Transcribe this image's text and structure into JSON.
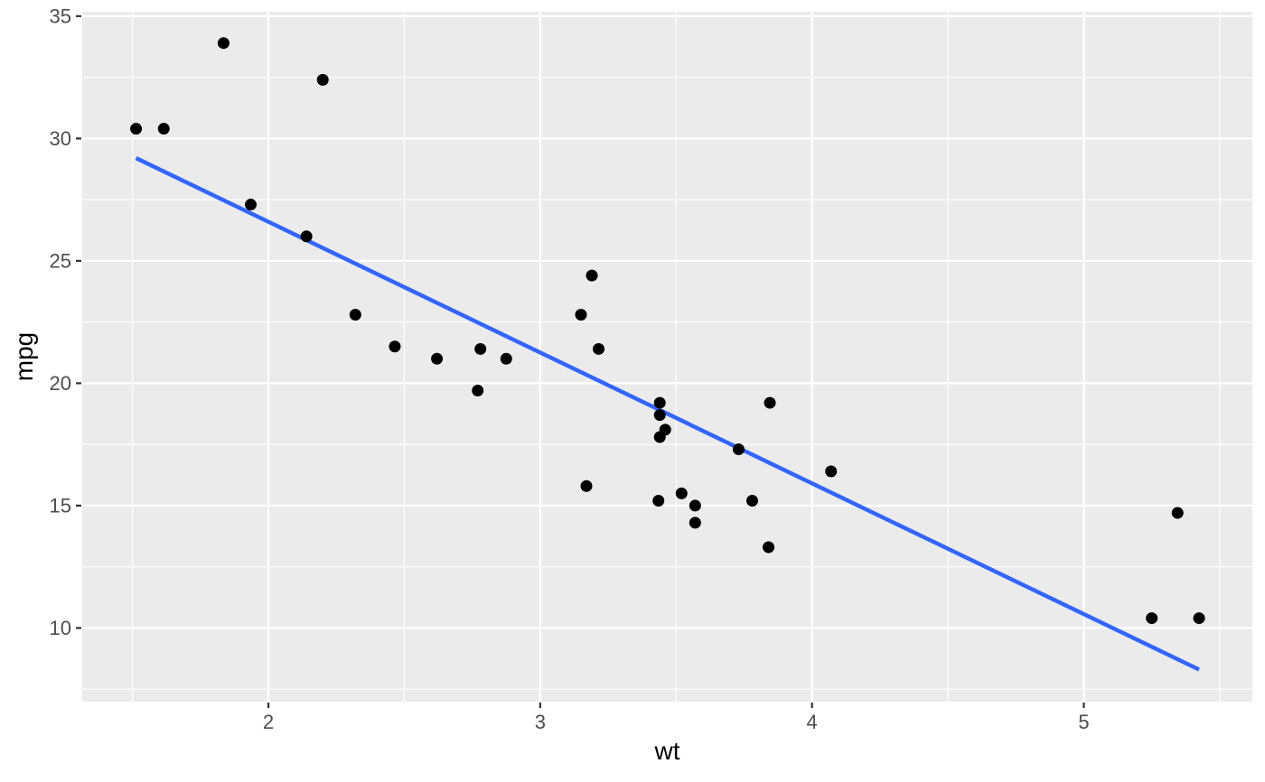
{
  "figure": {
    "background_color": "#FFFFFF",
    "panel_background_color": "#EBEBEB",
    "grid_major_color": "#FFFFFF",
    "grid_minor_color": "#FFFFFF",
    "axis_text_color": "#4D4D4D",
    "axis_tick_color": "#333333",
    "axis_title_color": "#000000"
  },
  "chart_data": {
    "type": "scatter",
    "title": "",
    "xlabel": "wt",
    "ylabel": "mpg",
    "xlim": [
      1.315,
      5.62
    ],
    "ylim": [
      6.99,
      35.18
    ],
    "x_major_ticks": [
      2,
      3,
      4,
      5
    ],
    "x_minor_ticks": [
      1.5,
      2.5,
      3.5,
      4.5,
      5.5
    ],
    "y_major_ticks": [
      10,
      15,
      20,
      25,
      30,
      35
    ],
    "y_minor_ticks": [
      7.5,
      12.5,
      17.5,
      22.5,
      27.5,
      32.5
    ],
    "grid": true,
    "legend_position": "none",
    "point_color": "#000000",
    "point_radius": 6.5,
    "points": [
      {
        "wt": 2.62,
        "mpg": 21.0
      },
      {
        "wt": 2.875,
        "mpg": 21.0
      },
      {
        "wt": 2.32,
        "mpg": 22.8
      },
      {
        "wt": 3.215,
        "mpg": 21.4
      },
      {
        "wt": 3.44,
        "mpg": 18.7
      },
      {
        "wt": 3.46,
        "mpg": 18.1
      },
      {
        "wt": 3.57,
        "mpg": 14.3
      },
      {
        "wt": 3.19,
        "mpg": 24.4
      },
      {
        "wt": 3.15,
        "mpg": 22.8
      },
      {
        "wt": 3.44,
        "mpg": 19.2
      },
      {
        "wt": 3.44,
        "mpg": 17.8
      },
      {
        "wt": 4.07,
        "mpg": 16.4
      },
      {
        "wt": 3.73,
        "mpg": 17.3
      },
      {
        "wt": 3.78,
        "mpg": 15.2
      },
      {
        "wt": 5.25,
        "mpg": 10.4
      },
      {
        "wt": 5.424,
        "mpg": 10.4
      },
      {
        "wt": 5.345,
        "mpg": 14.7
      },
      {
        "wt": 2.2,
        "mpg": 32.4
      },
      {
        "wt": 1.615,
        "mpg": 30.4
      },
      {
        "wt": 1.835,
        "mpg": 33.9
      },
      {
        "wt": 2.465,
        "mpg": 21.5
      },
      {
        "wt": 3.52,
        "mpg": 15.5
      },
      {
        "wt": 3.435,
        "mpg": 15.2
      },
      {
        "wt": 3.84,
        "mpg": 13.3
      },
      {
        "wt": 3.845,
        "mpg": 19.2
      },
      {
        "wt": 1.935,
        "mpg": 27.3
      },
      {
        "wt": 2.14,
        "mpg": 26.0
      },
      {
        "wt": 1.513,
        "mpg": 30.4
      },
      {
        "wt": 3.17,
        "mpg": 15.8
      },
      {
        "wt": 2.77,
        "mpg": 19.7
      },
      {
        "wt": 3.57,
        "mpg": 15.0
      },
      {
        "wt": 2.78,
        "mpg": 21.4
      }
    ],
    "trend_line": {
      "type": "linear",
      "color": "#3366FF",
      "stroke_width": 4.5,
      "x_start": 1.513,
      "y_start": 29.2,
      "x_end": 5.424,
      "y_end": 8.3
    }
  }
}
